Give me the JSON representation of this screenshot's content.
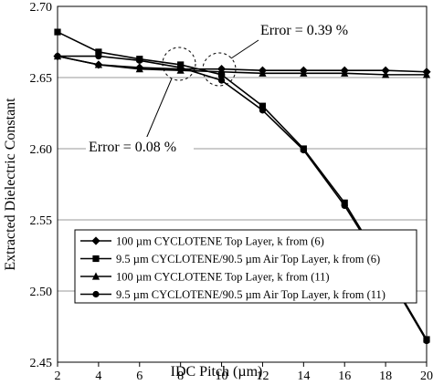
{
  "chart_data": {
    "type": "line",
    "xlabel": "IDC Pitch (µm)",
    "ylabel": "Extracted Dielectric Constant",
    "x": [
      2,
      4,
      6,
      8,
      10,
      12,
      14,
      16,
      18,
      20
    ],
    "series": [
      {
        "name": "100 µm CYCLOTENE Top Layer, k from (6)",
        "color": "#000000",
        "marker": "diamond",
        "values": [
          2.665,
          2.659,
          2.657,
          2.656,
          2.656,
          2.655,
          2.655,
          2.655,
          2.655,
          2.654
        ]
      },
      {
        "name": "9.5 µm CYCLOTENE/90.5 µm Air Top Layer, k from (6)",
        "color": "#000000",
        "marker": "square",
        "values": [
          2.682,
          2.668,
          2.663,
          2.659,
          2.652,
          2.63,
          2.6,
          2.562,
          2.515,
          2.466
        ]
      },
      {
        "name": "100 µm CYCLOTENE Top Layer, k from (11)",
        "color": "#000000",
        "marker": "triangle",
        "values": [
          2.665,
          2.659,
          2.656,
          2.655,
          2.654,
          2.653,
          2.653,
          2.653,
          2.652,
          2.652
        ]
      },
      {
        "name": "9.5 µm CYCLOTENE/90.5 µm Air Top Layer, k from (11)",
        "color": "#000000",
        "marker": "circle",
        "values": [
          2.665,
          2.665,
          2.662,
          2.657,
          2.648,
          2.627,
          2.599,
          2.56,
          2.514,
          2.465
        ]
      }
    ],
    "xlim": [
      2,
      20
    ],
    "xticks": [
      2,
      4,
      6,
      8,
      10,
      12,
      14,
      16,
      18,
      20
    ],
    "ylim": [
      2.45,
      2.7
    ],
    "yticks": [
      {
        "value": 2.45,
        "label": "2.45"
      },
      {
        "value": 2.5,
        "label": "2.50"
      },
      2.55,
      {
        "value": 2.6,
        "label": "2.60"
      },
      2.65,
      {
        "value": 2.7,
        "label": "2.70"
      }
    ],
    "grid": true,
    "annotations": [
      {
        "text": "Error = 0.39 %"
      },
      {
        "text": "Error = 0.08 %"
      }
    ]
  }
}
